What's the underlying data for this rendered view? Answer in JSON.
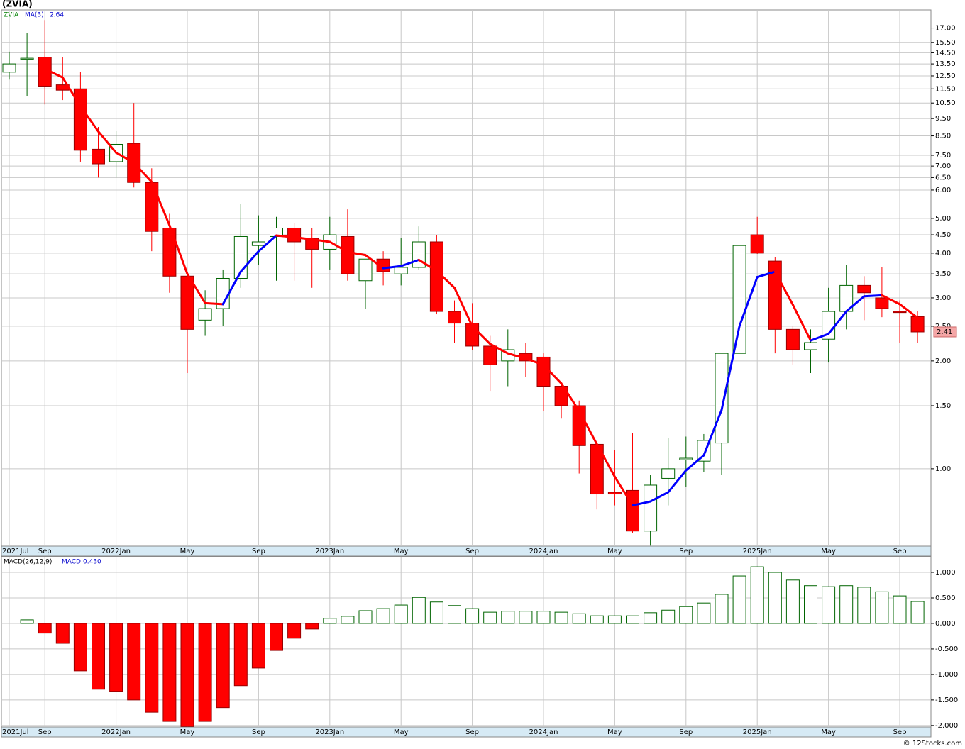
{
  "chart_data": [
    {
      "type": "candlestick",
      "title": "(ZVIA)",
      "symbol": "ZVIA",
      "log": true,
      "grid": true,
      "up_color": "#006400",
      "down_color": "#ff0000",
      "categories": [
        "2021Jul",
        null,
        "Sep",
        null,
        null,
        null,
        "2022Jan",
        null,
        null,
        null,
        "May",
        null,
        null,
        null,
        "Sep",
        null,
        null,
        null,
        "2023Jan",
        null,
        null,
        null,
        "May",
        null,
        null,
        null,
        "Sep",
        null,
        null,
        null,
        "2024Jan",
        null,
        null,
        null,
        "May",
        null,
        null,
        null,
        "Sep",
        null,
        null,
        null,
        "2025Jan",
        null,
        null,
        null,
        "May",
        null,
        null,
        null,
        "Sep",
        null
      ],
      "open": [
        12.8,
        14.0,
        14.1,
        11.8,
        11.5,
        7.8,
        7.2,
        8.1,
        6.3,
        4.7,
        3.45,
        2.6,
        2.8,
        3.4,
        4.2,
        4.45,
        4.7,
        4.4,
        4.1,
        4.45,
        3.35,
        3.85,
        3.5,
        3.65,
        4.3,
        2.75,
        2.55,
        2.2,
        2.0,
        2.1,
        2.05,
        1.7,
        1.5,
        1.17,
        0.86,
        0.87,
        0.67,
        0.94,
        1.06,
        1.05,
        1.18,
        2.1,
        4.5,
        3.8,
        2.45,
        2.15,
        2.3,
        2.75,
        3.25,
        3.0,
        2.75,
        2.66
      ],
      "high": [
        14.6,
        16.5,
        17.9,
        14.1,
        12.8,
        9.0,
        8.8,
        10.5,
        6.9,
        5.15,
        3.45,
        3.15,
        3.6,
        5.5,
        5.1,
        5.05,
        4.85,
        4.7,
        5.05,
        5.3,
        3.85,
        4.05,
        4.4,
        4.75,
        4.5,
        2.95,
        2.9,
        2.35,
        2.45,
        2.25,
        2.1,
        1.75,
        1.55,
        1.17,
        1.13,
        1.26,
        0.96,
        1.22,
        1.23,
        1.25,
        2.1,
        4.2,
        5.05,
        3.9,
        2.5,
        2.45,
        3.2,
        3.7,
        3.45,
        3.65,
        2.95,
        2.75
      ],
      "low": [
        12.2,
        11.0,
        10.4,
        10.7,
        7.2,
        6.5,
        6.5,
        6.1,
        4.05,
        3.1,
        1.85,
        2.35,
        2.5,
        3.2,
        3.7,
        3.35,
        3.35,
        3.2,
        3.6,
        3.35,
        2.8,
        3.25,
        3.25,
        3.6,
        2.7,
        2.25,
        2.15,
        1.65,
        1.7,
        1.8,
        1.45,
        1.38,
        0.97,
        0.77,
        0.79,
        0.66,
        0.61,
        0.79,
        0.89,
        0.98,
        0.96,
        2.1,
        3.98,
        2.1,
        1.95,
        1.85,
        1.98,
        2.45,
        2.6,
        2.65,
        2.25,
        2.25
      ],
      "close": [
        13.5,
        14.0,
        11.7,
        11.4,
        7.75,
        7.1,
        8.05,
        6.3,
        4.6,
        3.45,
        2.45,
        2.8,
        3.4,
        4.45,
        4.3,
        4.7,
        4.3,
        4.1,
        4.5,
        3.5,
        3.85,
        3.55,
        3.65,
        4.3,
        2.75,
        2.55,
        2.2,
        1.95,
        2.15,
        2.0,
        1.7,
        1.5,
        1.16,
        0.85,
        0.85,
        0.67,
        0.9,
        1.0,
        1.07,
        1.2,
        2.1,
        4.2,
        4.0,
        2.45,
        2.15,
        2.25,
        2.75,
        3.25,
        3.1,
        2.8,
        2.73,
        2.41
      ],
      "ma": {
        "name": "MA(3)",
        "color_up": "#0000ff",
        "color_down": "#ff0000",
        "values": [
          null,
          null,
          13.07,
          12.37,
          10.28,
          8.75,
          7.63,
          7.15,
          6.32,
          4.78,
          3.5,
          2.9,
          2.88,
          3.55,
          4.05,
          4.48,
          4.43,
          4.37,
          4.3,
          4.03,
          3.95,
          3.63,
          3.68,
          3.83,
          3.57,
          3.2,
          2.5,
          2.23,
          2.1,
          2.03,
          1.95,
          1.73,
          1.45,
          1.17,
          0.95,
          0.79,
          0.81,
          0.86,
          0.99,
          1.09,
          1.46,
          2.5,
          3.43,
          3.55,
          2.87,
          2.28,
          2.38,
          2.75,
          3.03,
          3.05,
          2.88,
          2.64
        ]
      },
      "ylim": [
        0.608,
        19.1
      ],
      "yticks": [
        {
          "value": 17,
          "label": "17.00"
        },
        {
          "value": 15.5,
          "label": "15.50"
        },
        {
          "value": 14.5,
          "label": "14.50"
        },
        {
          "value": 13.5,
          "label": "13.50"
        },
        {
          "value": 12.5,
          "label": "12.50"
        },
        {
          "value": 11.5,
          "label": "11.50"
        },
        {
          "value": 10.5,
          "label": "10.50"
        },
        {
          "value": 9.5,
          "label": "9.50"
        },
        {
          "value": 8.5,
          "label": "8.50"
        },
        {
          "value": 7.5,
          "label": "7.50"
        },
        {
          "value": 7,
          "label": "7.00"
        },
        {
          "value": 6.5,
          "label": "6.50"
        },
        {
          "value": 6,
          "label": "6.00"
        },
        {
          "value": 5,
          "label": "5.00"
        },
        {
          "value": 4.5,
          "label": "4.50"
        },
        {
          "value": 4,
          "label": "4.00"
        },
        {
          "value": 3.5,
          "label": "3.50"
        },
        {
          "value": 3,
          "label": "3.00"
        },
        {
          "value": 2.5,
          "label": "2.50"
        },
        {
          "value": 2,
          "label": "2.00"
        },
        {
          "value": 1.5,
          "label": "1.50"
        },
        {
          "value": 1,
          "label": "1.00"
        }
      ]
    },
    {
      "type": "bar",
      "name": "MACD(26,12,9)",
      "grid": true,
      "up_color": "#006400",
      "down_color": "#ff0000",
      "values": [
        null,
        0.07,
        -0.19,
        -0.39,
        -0.93,
        -1.29,
        -1.33,
        -1.5,
        -1.74,
        -1.92,
        -2.02,
        -1.92,
        -1.65,
        -1.22,
        -0.875,
        -0.53,
        -0.29,
        -0.11,
        0.1,
        0.14,
        0.25,
        0.29,
        0.36,
        0.51,
        0.42,
        0.35,
        0.29,
        0.22,
        0.24,
        0.24,
        0.24,
        0.22,
        0.19,
        0.15,
        0.15,
        0.15,
        0.21,
        0.26,
        0.33,
        0.4,
        0.57,
        0.93,
        1.11,
        1.0,
        0.85,
        0.74,
        0.72,
        0.74,
        0.71,
        0.62,
        0.54,
        0.43
      ],
      "value_labels": [
        null,
        null,
        null,
        null,
        null,
        null,
        null,
        null,
        null,
        null,
        null,
        null,
        null,
        null,
        null,
        null,
        null,
        null,
        null,
        null,
        null,
        null,
        null,
        null,
        null,
        null,
        null,
        null,
        null,
        null,
        null,
        null,
        null,
        null,
        null,
        null,
        null,
        null,
        null,
        null,
        null,
        null,
        null,
        null,
        null,
        null,
        null,
        null,
        null,
        null,
        null,
        "MACD:0.430"
      ],
      "ylim": [
        -2.03,
        1.306
      ],
      "yticks": [
        {
          "value": 1,
          "label": "1.000"
        },
        {
          "value": 0.5,
          "label": "0.500"
        },
        {
          "value": 0,
          "label": "0.000"
        },
        {
          "value": -0.5,
          "label": "-0.500"
        },
        {
          "value": -1,
          "label": "-1.000"
        },
        {
          "value": -1.5,
          "label": "-1.500"
        },
        {
          "value": -2,
          "label": "-2.000"
        }
      ]
    }
  ],
  "footer": "© 12Stocks.com"
}
